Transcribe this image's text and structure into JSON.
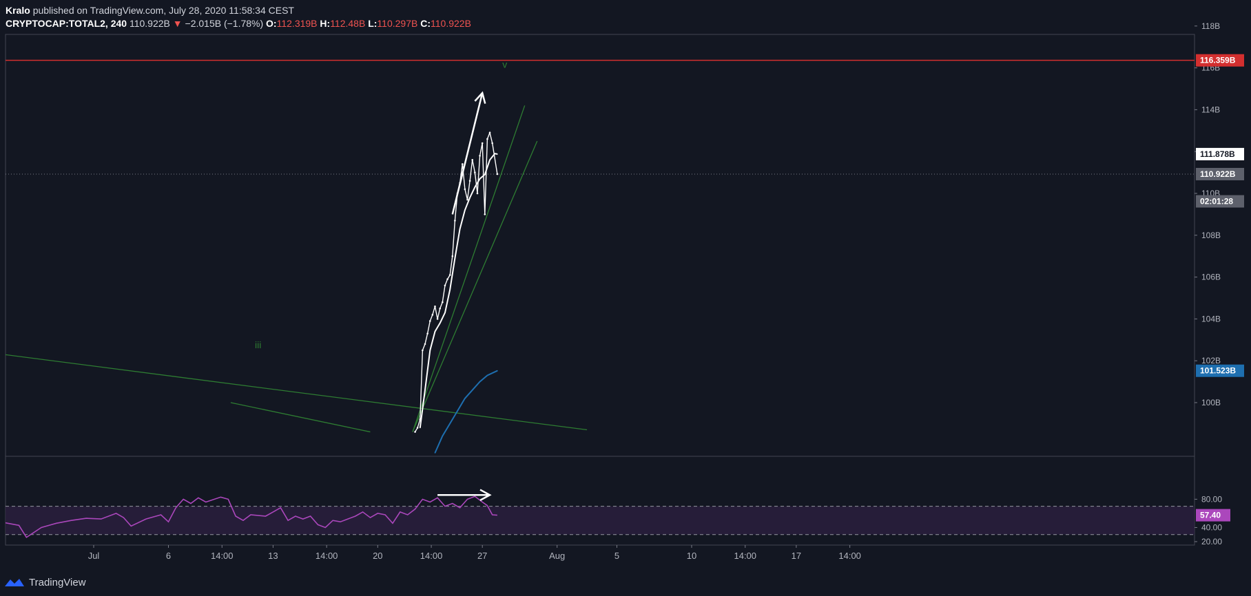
{
  "header": {
    "author": "Kralo",
    "published": "published on TradingView.com, July 28, 2020 11:58:34 CEST",
    "symbol": "CRYPTOCAP:TOTAL2, 240",
    "last": "110.922B",
    "change": "−2.015B (−1.78%)",
    "o_label": "O:",
    "o_value": "112.319B",
    "h_label": "H:",
    "h_value": "112.48B",
    "l_label": "L:",
    "l_value": "110.297B",
    "c_label": "C:",
    "c_value": "110.922B"
  },
  "footer": {
    "brand": "TradingView"
  },
  "chart_data": {
    "type": "line",
    "price_axis": {
      "ticks": [
        "118B",
        "116B",
        "114B",
        "112B",
        "110B",
        "108B",
        "106B",
        "104B",
        "102B",
        "100B"
      ],
      "tick_values": [
        118,
        116,
        114,
        112,
        110,
        108,
        106,
        104,
        102,
        100
      ]
    },
    "price_badges": [
      {
        "text": "116.359B",
        "value": 116.359,
        "color": "#d32f2f",
        "text_color": "#ffffff"
      },
      {
        "text": "111.878B",
        "value": 111.878,
        "color": "#ffffff",
        "text_color": "#131722"
      },
      {
        "text": "110.922B",
        "value": 110.922,
        "color": "#5d606b",
        "text_color": "#ffffff"
      },
      {
        "text": "02:01:28",
        "value": 109.62,
        "color": "#5d606b",
        "text_color": "#ffffff"
      },
      {
        "text": "101.523B",
        "value": 101.523,
        "color": "#1e6fb0",
        "text_color": "#ffffff"
      }
    ],
    "resistance_level": 116.359,
    "current_price": 110.922,
    "wave_labels": [
      {
        "text": "v",
        "color": "#2e7d32",
        "at": "2020-07-28 12:00",
        "value": 116.0
      },
      {
        "text": "iii",
        "color": "#2e7d32",
        "at": "2020-07-12",
        "value": 102.6
      }
    ],
    "series": [
      {
        "name": "TOTAL2",
        "color": "#ffffff",
        "points": [
          [
            "2020-07-22 12:00",
            98.6
          ],
          [
            "2020-07-22 16:00",
            98.8
          ],
          [
            "2020-07-22 20:00",
            99.2
          ],
          [
            "2020-07-23 00:00",
            102.5
          ],
          [
            "2020-07-23 04:00",
            102.8
          ],
          [
            "2020-07-23 08:00",
            103.3
          ],
          [
            "2020-07-23 12:00",
            103.9
          ],
          [
            "2020-07-23 16:00",
            104.2
          ],
          [
            "2020-07-23 20:00",
            104.6
          ],
          [
            "2020-07-24 00:00",
            104.0
          ],
          [
            "2020-07-24 04:00",
            104.5
          ],
          [
            "2020-07-24 08:00",
            104.8
          ],
          [
            "2020-07-24 12:00",
            105.6
          ],
          [
            "2020-07-24 16:00",
            105.9
          ],
          [
            "2020-07-24 20:00",
            106.1
          ],
          [
            "2020-07-25 00:00",
            107.0
          ],
          [
            "2020-07-25 04:00",
            108.7
          ],
          [
            "2020-07-25 08:00",
            110.0
          ],
          [
            "2020-07-25 12:00",
            110.5
          ],
          [
            "2020-07-25 16:00",
            111.4
          ],
          [
            "2020-07-25 20:00",
            110.2
          ],
          [
            "2020-07-26 00:00",
            109.7
          ],
          [
            "2020-07-26 04:00",
            110.6
          ],
          [
            "2020-07-26 08:00",
            111.6
          ],
          [
            "2020-07-26 12:00",
            111.0
          ],
          [
            "2020-07-26 16:00",
            110.0
          ],
          [
            "2020-07-26 20:00",
            111.8
          ],
          [
            "2020-07-27 00:00",
            112.4
          ],
          [
            "2020-07-27 04:00",
            109.0
          ],
          [
            "2020-07-27 08:00",
            112.6
          ],
          [
            "2020-07-27 12:00",
            112.9
          ],
          [
            "2020-07-27 16:00",
            112.4
          ],
          [
            "2020-07-28 00:00",
            110.922
          ]
        ]
      },
      {
        "name": "",
        "color": "#ffffff",
        "points": [
          [
            "2020-07-22 20:00",
            98.8
          ],
          [
            "2020-07-23 04:00",
            100.6
          ],
          [
            "2020-07-23 12:00",
            102.5
          ],
          [
            "2020-07-23 20:00",
            103.4
          ],
          [
            "2020-07-24 04:00",
            103.8
          ],
          [
            "2020-07-24 12:00",
            104.3
          ],
          [
            "2020-07-24 20:00",
            105.4
          ],
          [
            "2020-07-25 04:00",
            106.9
          ],
          [
            "2020-07-25 12:00",
            108.3
          ],
          [
            "2020-07-25 20:00",
            109.2
          ],
          [
            "2020-07-26 04:00",
            109.8
          ],
          [
            "2020-07-26 12:00",
            110.3
          ],
          [
            "2020-07-26 20:00",
            110.7
          ],
          [
            "2020-07-27 04:00",
            110.9
          ],
          [
            "2020-07-27 12:00",
            111.6
          ],
          [
            "2020-07-27 20:00",
            111.9
          ],
          [
            "2020-07-28 00:00",
            111.878
          ]
        ]
      },
      {
        "name": "",
        "color": "#1e6fb0",
        "points": [
          [
            "2020-07-23 20:00",
            97.6
          ],
          [
            "2020-07-24 08:00",
            98.4
          ],
          [
            "2020-07-24 20:00",
            99.0
          ],
          [
            "2020-07-25 08:00",
            99.6
          ],
          [
            "2020-07-25 20:00",
            100.2
          ],
          [
            "2020-07-26 08:00",
            100.6
          ],
          [
            "2020-07-26 20:00",
            101.0
          ],
          [
            "2020-07-27 08:00",
            101.3
          ],
          [
            "2020-07-28 00:00",
            101.523
          ]
        ]
      }
    ],
    "trendlines": [
      {
        "color": "#2e7d32",
        "from": [
          "2020-06-25 00:00",
          102.3
        ],
        "to": [
          "2020-08-03 00:00",
          98.7
        ]
      },
      {
        "color": "#2e7d32",
        "from": [
          "2020-07-10 04:00",
          100.0
        ],
        "to": [
          "2020-07-19 12:00",
          98.6
        ]
      },
      {
        "color": "#2e7d32",
        "from": [
          "2020-07-22 08:00",
          98.6
        ],
        "to": [
          "2020-07-29 20:00",
          114.2
        ]
      },
      {
        "color": "#2e7d32",
        "from": [
          "2020-07-22 08:00",
          98.6
        ],
        "to": [
          "2020-07-30 16:00",
          112.5
        ]
      }
    ],
    "rsi": {
      "value_text": "57.40",
      "ticks": [
        "80.00",
        "40.00",
        "20.00"
      ],
      "tick_values": [
        80,
        40,
        20
      ],
      "upper_band": 70,
      "lower_band": 30,
      "color": "#ab47bc",
      "points": [
        [
          "2020-06-25 00:00",
          47
        ],
        [
          "2020-06-26 00:00",
          43
        ],
        [
          "2020-06-26 12:00",
          26
        ],
        [
          "2020-06-27 12:00",
          40
        ],
        [
          "2020-06-28 12:00",
          46
        ],
        [
          "2020-06-29 12:00",
          50
        ],
        [
          "2020-06-30 12:00",
          53
        ],
        [
          "2020-07-01 12:00",
          52
        ],
        [
          "2020-07-02 12:00",
          60
        ],
        [
          "2020-07-03 00:00",
          54
        ],
        [
          "2020-07-03 12:00",
          42
        ],
        [
          "2020-07-04 12:00",
          52
        ],
        [
          "2020-07-05 12:00",
          58
        ],
        [
          "2020-07-06 00:00",
          48
        ],
        [
          "2020-07-06 12:00",
          68
        ],
        [
          "2020-07-07 00:00",
          80
        ],
        [
          "2020-07-07 12:00",
          74
        ],
        [
          "2020-07-08 00:00",
          82
        ],
        [
          "2020-07-08 12:00",
          76
        ],
        [
          "2020-07-09 12:00",
          83
        ],
        [
          "2020-07-10 00:00",
          80
        ],
        [
          "2020-07-10 12:00",
          56
        ],
        [
          "2020-07-11 00:00",
          50
        ],
        [
          "2020-07-11 12:00",
          58
        ],
        [
          "2020-07-12 12:00",
          56
        ],
        [
          "2020-07-13 00:00",
          62
        ],
        [
          "2020-07-13 12:00",
          68
        ],
        [
          "2020-07-14 00:00",
          50
        ],
        [
          "2020-07-14 12:00",
          56
        ],
        [
          "2020-07-15 00:00",
          52
        ],
        [
          "2020-07-15 12:00",
          56
        ],
        [
          "2020-07-16 00:00",
          44
        ],
        [
          "2020-07-16 12:00",
          40
        ],
        [
          "2020-07-17 00:00",
          50
        ],
        [
          "2020-07-17 12:00",
          48
        ],
        [
          "2020-07-18 00:00",
          52
        ],
        [
          "2020-07-18 12:00",
          56
        ],
        [
          "2020-07-19 00:00",
          62
        ],
        [
          "2020-07-19 12:00",
          54
        ],
        [
          "2020-07-20 00:00",
          60
        ],
        [
          "2020-07-20 12:00",
          58
        ],
        [
          "2020-07-21 00:00",
          46
        ],
        [
          "2020-07-21 12:00",
          62
        ],
        [
          "2020-07-22 00:00",
          58
        ],
        [
          "2020-07-22 12:00",
          66
        ],
        [
          "2020-07-23 00:00",
          80
        ],
        [
          "2020-07-23 12:00",
          76
        ],
        [
          "2020-07-24 00:00",
          82
        ],
        [
          "2020-07-24 12:00",
          70
        ],
        [
          "2020-07-25 00:00",
          74
        ],
        [
          "2020-07-25 12:00",
          68
        ],
        [
          "2020-07-26 00:00",
          80
        ],
        [
          "2020-07-26 12:00",
          84
        ],
        [
          "2020-07-27 00:00",
          76
        ],
        [
          "2020-07-27 08:00",
          71
        ],
        [
          "2020-07-27 16:00",
          58
        ],
        [
          "2020-07-28 00:00",
          57.4
        ]
      ]
    },
    "x_axis": {
      "ticks": [
        {
          "label": "Jul",
          "at": "2020-07-01"
        },
        {
          "label": "6",
          "at": "2020-07-06"
        },
        {
          "label": "14:00",
          "at": "2020-07-09 14:00"
        },
        {
          "label": "13",
          "at": "2020-07-13"
        },
        {
          "label": "14:00",
          "at": "2020-07-16 14:00"
        },
        {
          "label": "20",
          "at": "2020-07-20"
        },
        {
          "label": "14:00",
          "at": "2020-07-23 14:00"
        },
        {
          "label": "27",
          "at": "2020-07-27"
        },
        {
          "label": "Aug",
          "at": "2020-08-01"
        },
        {
          "label": "5",
          "at": "2020-08-05"
        },
        {
          "label": "10",
          "at": "2020-08-10"
        },
        {
          "label": "14:00",
          "at": "2020-08-13 14:00"
        },
        {
          "label": "17",
          "at": "2020-08-17"
        },
        {
          "label": "14:00",
          "at": "2020-08-20 14:00"
        }
      ]
    },
    "annotations": [
      {
        "type": "arrow",
        "color": "#ffffff",
        "pane": "price",
        "from": [
          "2020-07-25 00:00",
          109.0
        ],
        "to": [
          "2020-07-27 00:00",
          114.8
        ]
      },
      {
        "type": "arrow",
        "color": "#ffffff",
        "pane": "rsi",
        "from": [
          "2020-07-24 00:00",
          86
        ],
        "to": [
          "2020-07-27 12:00",
          86
        ]
      }
    ],
    "grid": false,
    "legend": "none"
  }
}
